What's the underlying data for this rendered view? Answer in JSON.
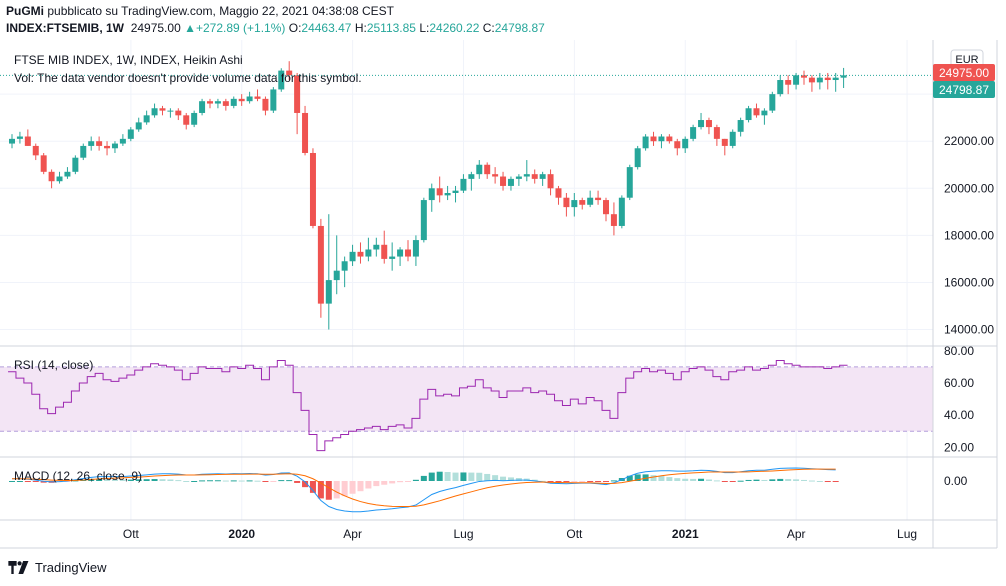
{
  "header": {
    "publisher": "PuGMi",
    "published_text": "pubblicato su TradingView.com, Maggio 22, 2021 04:38:08 CEST",
    "symbol": "INDEX:FTSEMIB, 1W",
    "last": "24975.00",
    "change": "+272.89 (+1.1%)",
    "o_label": "O:",
    "o_value": "24463.47",
    "h_label": "H:",
    "h_value": "25113.85",
    "l_label": "L:",
    "l_value": "24260.22",
    "c_label": "C:",
    "c_value": "24798.87"
  },
  "legend": {
    "title": "FTSE MIB INDEX, 1W, INDEX, Heikin Ashi",
    "vol_note": "Vol: The data vendor doesn't provide volume data for this symbol.",
    "rsi_label": "RSI (14, close)",
    "macd_label": "MACD (12, 26, close, 9)"
  },
  "currency": "EUR",
  "price_tags": {
    "last": "24975.00",
    "close": "24798.87"
  },
  "footer": {
    "brand": "TradingView"
  },
  "colors": {
    "up": "#26a69a",
    "down": "#ef5350",
    "rsi": "#9c27b0",
    "rsi_band": "#f3e5f5",
    "macd": "#2196f3",
    "signal": "#ff6d00",
    "hist_up_strong": "#26a69a",
    "hist_up_weak": "#b2dfdb",
    "hist_down_strong": "#ef5350",
    "hist_down_weak": "#ffcdd2"
  },
  "chart_data": [
    {
      "type": "candlestick",
      "title": "FTSE MIB INDEX, 1W, INDEX, Heikin Ashi",
      "yticks": [
        14000,
        16000,
        18000,
        20000,
        22000,
        24000
      ],
      "ylim": [
        13300,
        26300
      ],
      "xticks": [
        "Ott",
        "2020",
        "Apr",
        "Lug",
        "Ott",
        "2021",
        "Apr",
        "Lug"
      ],
      "grid": true,
      "candles": [
        [
          21900,
          22300,
          21700,
          22100
        ],
        [
          22100,
          22400,
          21900,
          22200
        ],
        [
          22200,
          22500,
          21800,
          21800
        ],
        [
          21800,
          21900,
          21200,
          21400
        ],
        [
          21400,
          21500,
          20600,
          20700
        ],
        [
          20700,
          20800,
          20000,
          20300
        ],
        [
          20300,
          20700,
          20200,
          20500
        ],
        [
          20500,
          20900,
          20400,
          20700
        ],
        [
          20700,
          21400,
          20600,
          21300
        ],
        [
          21300,
          21900,
          21200,
          21800
        ],
        [
          21800,
          22200,
          21600,
          22000
        ],
        [
          22000,
          22200,
          21600,
          21800
        ],
        [
          21800,
          22000,
          21400,
          21700
        ],
        [
          21700,
          22000,
          21500,
          21900
        ],
        [
          21900,
          22300,
          21800,
          22100
        ],
        [
          22100,
          22600,
          22000,
          22500
        ],
        [
          22500,
          23000,
          22400,
          22800
        ],
        [
          22800,
          23300,
          22700,
          23100
        ],
        [
          23100,
          23600,
          23000,
          23400
        ],
        [
          23400,
          23500,
          23100,
          23300
        ],
        [
          23300,
          23400,
          23000,
          23300
        ],
        [
          23300,
          23400,
          22900,
          23100
        ],
        [
          23100,
          23200,
          22500,
          22700
        ],
        [
          22700,
          23300,
          22600,
          23200
        ],
        [
          23200,
          23800,
          23100,
          23700
        ],
        [
          23700,
          23800,
          23400,
          23600
        ],
        [
          23600,
          23800,
          23400,
          23700
        ],
        [
          23700,
          23800,
          23300,
          23500
        ],
        [
          23500,
          23900,
          23400,
          23800
        ],
        [
          23800,
          24000,
          23500,
          23700
        ],
        [
          23700,
          24100,
          23600,
          23900
        ],
        [
          23900,
          24200,
          23700,
          23800
        ],
        [
          23800,
          23900,
          23100,
          23300
        ],
        [
          23300,
          24300,
          23200,
          24200
        ],
        [
          24200,
          25100,
          24100,
          25000
        ],
        [
          25000,
          25400,
          24600,
          24800
        ],
        [
          24800,
          24900,
          22300,
          23200
        ],
        [
          23200,
          23500,
          21400,
          21500
        ],
        [
          21500,
          21700,
          18300,
          18400
        ],
        [
          18400,
          18700,
          14500,
          15100
        ],
        [
          15100,
          18900,
          14000,
          16100
        ],
        [
          16100,
          18000,
          15500,
          16500
        ],
        [
          16500,
          17100,
          15800,
          16900
        ],
        [
          16900,
          17600,
          16700,
          17300
        ],
        [
          17300,
          17700,
          16800,
          17100
        ],
        [
          17100,
          17900,
          16900,
          17400
        ],
        [
          17400,
          17900,
          17100,
          17600
        ],
        [
          17600,
          18200,
          16800,
          17000
        ],
        [
          17000,
          17700,
          16500,
          17100
        ],
        [
          17100,
          17500,
          16700,
          17400
        ],
        [
          17400,
          17800,
          16900,
          17100
        ],
        [
          17100,
          18000,
          16700,
          17800
        ],
        [
          17800,
          19600,
          17700,
          19500
        ],
        [
          19500,
          20200,
          19000,
          20000
        ],
        [
          20000,
          20500,
          19400,
          19700
        ],
        [
          19700,
          20100,
          19500,
          19800
        ],
        [
          19800,
          20100,
          19400,
          19900
        ],
        [
          19900,
          20600,
          19800,
          20400
        ],
        [
          20400,
          20700,
          19900,
          20600
        ],
        [
          20600,
          21200,
          20400,
          21000
        ],
        [
          21000,
          21100,
          20400,
          20600
        ],
        [
          20600,
          20900,
          20200,
          20500
        ],
        [
          20500,
          20700,
          19900,
          20100
        ],
        [
          20100,
          20500,
          19900,
          20400
        ],
        [
          20400,
          20600,
          20100,
          20500
        ],
        [
          20500,
          21200,
          20300,
          20600
        ],
        [
          20600,
          20800,
          20200,
          20400
        ],
        [
          20400,
          20700,
          20100,
          20600
        ],
        [
          20600,
          20800,
          19700,
          20000
        ],
        [
          20000,
          20100,
          19300,
          19600
        ],
        [
          19600,
          19800,
          18800,
          19200
        ],
        [
          19200,
          19800,
          18800,
          19500
        ],
        [
          19500,
          19600,
          19100,
          19300
        ],
        [
          19300,
          19900,
          19200,
          19600
        ],
        [
          19600,
          19900,
          19300,
          19500
        ],
        [
          19500,
          19600,
          18600,
          18900
        ],
        [
          18900,
          19400,
          18000,
          18400
        ],
        [
          18400,
          19700,
          18300,
          19600
        ],
        [
          19600,
          21000,
          19500,
          20900
        ],
        [
          20900,
          21800,
          20800,
          21700
        ],
        [
          21700,
          22300,
          21600,
          22200
        ],
        [
          22200,
          22400,
          21800,
          22000
        ],
        [
          22000,
          22300,
          21700,
          22200
        ],
        [
          22200,
          22300,
          21900,
          22000
        ],
        [
          22000,
          22100,
          21400,
          21700
        ],
        [
          21700,
          22200,
          21500,
          22100
        ],
        [
          22100,
          22700,
          22000,
          22600
        ],
        [
          22600,
          23200,
          22500,
          22900
        ],
        [
          22900,
          23000,
          22300,
          22600
        ],
        [
          22600,
          22700,
          21800,
          22100
        ],
        [
          22100,
          22100,
          21400,
          21800
        ],
        [
          21800,
          22500,
          21700,
          22400
        ],
        [
          22400,
          23000,
          22200,
          22900
        ],
        [
          22900,
          23500,
          22800,
          23400
        ],
        [
          23400,
          23600,
          23000,
          23100
        ],
        [
          23100,
          23400,
          22700,
          23300
        ],
        [
          23300,
          24100,
          23200,
          24000
        ],
        [
          24000,
          24800,
          23900,
          24600
        ],
        [
          24600,
          24800,
          24000,
          24400
        ],
        [
          24400,
          24900,
          24200,
          24800
        ],
        [
          24800,
          25000,
          24400,
          24700
        ],
        [
          24700,
          24800,
          24100,
          24500
        ],
        [
          24500,
          24900,
          24200,
          24700
        ],
        [
          24700,
          24900,
          24200,
          24600
        ],
        [
          24600,
          24900,
          24100,
          24700
        ],
        [
          24700,
          25113.85,
          24260.22,
          24798.87
        ]
      ]
    },
    {
      "type": "line",
      "title": "RSI (14, close)",
      "yticks": [
        20,
        40,
        60,
        80
      ],
      "ylim": [
        14,
        83
      ],
      "bands": [
        30,
        70
      ],
      "values": [
        67,
        63,
        60,
        53,
        44,
        41,
        45,
        48,
        55,
        60,
        64,
        66,
        62,
        61,
        63,
        65,
        68,
        70,
        72,
        71,
        70,
        68,
        62,
        66,
        70,
        69,
        69,
        67,
        70,
        69,
        71,
        69,
        62,
        70,
        74,
        71,
        54,
        43,
        28,
        18,
        24,
        26,
        28,
        30,
        31,
        32,
        33,
        31,
        33,
        34,
        32,
        38,
        50,
        56,
        52,
        53,
        52,
        57,
        58,
        62,
        57,
        55,
        51,
        55,
        55,
        57,
        54,
        55,
        53,
        49,
        46,
        50,
        47,
        51,
        49,
        43,
        38,
        54,
        63,
        67,
        69,
        67,
        68,
        66,
        62,
        67,
        69,
        70,
        68,
        64,
        62,
        67,
        68,
        70,
        68,
        69,
        71,
        74,
        72,
        71,
        70,
        70,
        70,
        69,
        70,
        71
      ]
    },
    {
      "type": "line",
      "title": "MACD (12, 26, close, 9)",
      "yticks": [
        0
      ],
      "ylim": [
        -2600,
        1600
      ],
      "macd": [
        150,
        150,
        120,
        60,
        -20,
        -60,
        -40,
        0,
        80,
        170,
        240,
        290,
        290,
        290,
        300,
        330,
        370,
        410,
        460,
        480,
        480,
        460,
        400,
        400,
        450,
        470,
        480,
        470,
        490,
        480,
        500,
        480,
        390,
        430,
        530,
        540,
        320,
        -60,
        -640,
        -1300,
        -1700,
        -1900,
        -2000,
        -2050,
        -2050,
        -2000,
        -1930,
        -1900,
        -1850,
        -1780,
        -1730,
        -1600,
        -1250,
        -900,
        -700,
        -560,
        -440,
        -290,
        -160,
        -30,
        20,
        40,
        20,
        40,
        60,
        60,
        10,
        -60,
        -150,
        -170,
        -180,
        -160,
        -140,
        -140,
        -180,
        -240,
        -120,
        90,
        330,
        520,
        620,
        660,
        680,
        680,
        660,
        660,
        680,
        720,
        700,
        640,
        560,
        560,
        620,
        680,
        720,
        720,
        780,
        840,
        860,
        870,
        850,
        820,
        790,
        760,
        740
      ],
      "signal": [
        150,
        150,
        140,
        120,
        90,
        60,
        40,
        30,
        40,
        70,
        100,
        140,
        170,
        190,
        210,
        240,
        260,
        290,
        330,
        360,
        380,
        400,
        400,
        400,
        410,
        420,
        430,
        440,
        450,
        450,
        460,
        460,
        450,
        450,
        470,
        480,
        450,
        350,
        150,
        -140,
        -450,
        -740,
        -990,
        -1200,
        -1370,
        -1500,
        -1590,
        -1650,
        -1690,
        -1700,
        -1700,
        -1680,
        -1590,
        -1460,
        -1320,
        -1160,
        -1000,
        -860,
        -720,
        -580,
        -450,
        -350,
        -270,
        -200,
        -140,
        -100,
        -80,
        -70,
        -90,
        -100,
        -110,
        -120,
        -120,
        -120,
        -140,
        -170,
        -160,
        -110,
        -20,
        80,
        180,
        270,
        350,
        420,
        470,
        510,
        540,
        570,
        600,
        600,
        600,
        600,
        600,
        610,
        630,
        650,
        670,
        700,
        730,
        760,
        780,
        790,
        790,
        790,
        790
      ],
      "histogram": [
        0,
        0,
        -20,
        -60,
        -110,
        -120,
        -80,
        -30,
        40,
        100,
        140,
        150,
        120,
        100,
        90,
        90,
        110,
        120,
        130,
        120,
        100,
        60,
        0,
        0,
        40,
        50,
        50,
        30,
        40,
        30,
        40,
        20,
        -60,
        -20,
        60,
        60,
        -130,
        -410,
        -790,
        -1160,
        -1250,
        -1160,
        -1010,
        -850,
        -680,
        -500,
        -340,
        -250,
        -160,
        -80,
        -30,
        80,
        340,
        560,
        620,
        600,
        560,
        570,
        560,
        550,
        470,
        390,
        290,
        240,
        200,
        160,
        90,
        10,
        -60,
        -70,
        -70,
        -40,
        -20,
        -20,
        -40,
        -70,
        40,
        200,
        350,
        440,
        440,
        390,
        330,
        260,
        190,
        150,
        140,
        150,
        100,
        40,
        -40,
        -40,
        20,
        70,
        90,
        70,
        110,
        140,
        130,
        110,
        70,
        30,
        0,
        -30,
        -50
      ]
    }
  ]
}
